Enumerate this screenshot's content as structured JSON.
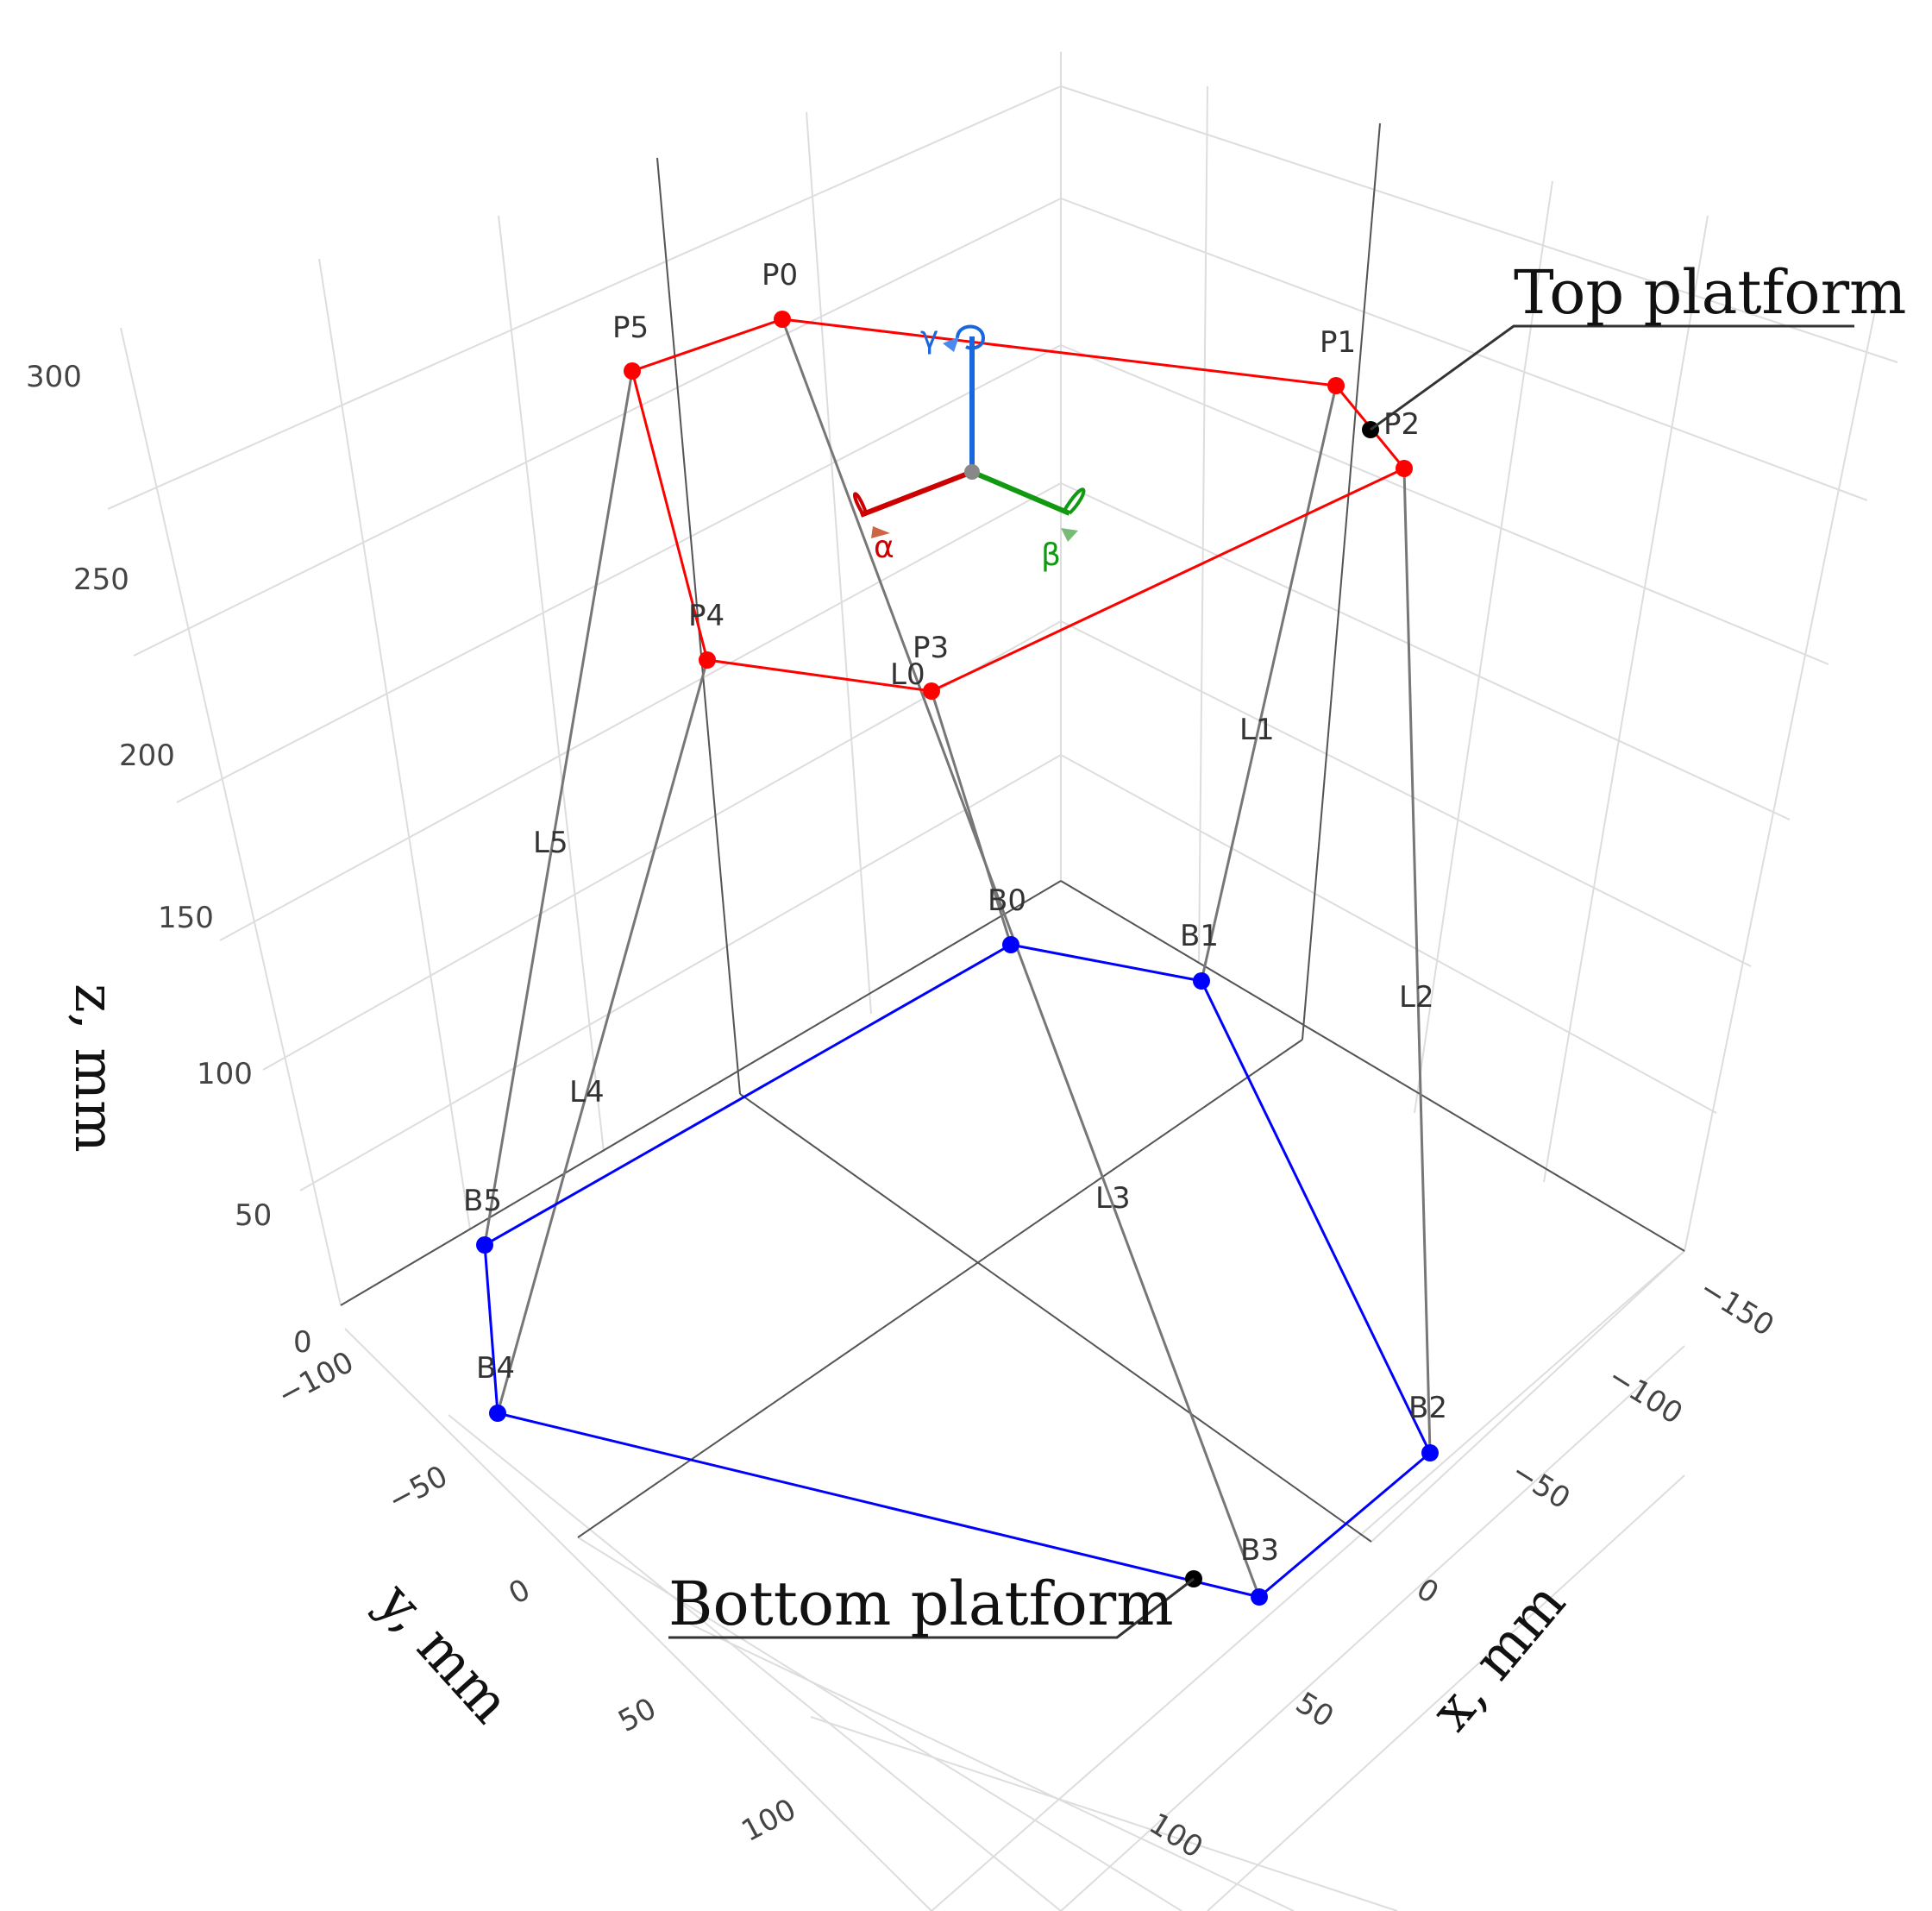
{
  "axes": {
    "z_title": "z, mm",
    "y_title": "y, mm",
    "x_title": "x, mm",
    "z_ticks": [
      "0",
      "50",
      "100",
      "150",
      "200",
      "250",
      "300"
    ],
    "y_ticks": [
      "−100",
      "−50",
      "0",
      "50",
      "100"
    ],
    "x_ticks": [
      "−150",
      "−100",
      "−50",
      "0",
      "50",
      "100"
    ]
  },
  "top_platform": {
    "color": "#ff0000",
    "points": [
      "P0",
      "P1",
      "P2",
      "P3",
      "P4",
      "P5"
    ]
  },
  "bottom_platform": {
    "color": "#0000ff",
    "points": [
      "B0",
      "B1",
      "B2",
      "B3",
      "B4",
      "B5"
    ]
  },
  "legs": {
    "color": "#777777",
    "labels": [
      "L0",
      "L1",
      "L2",
      "L3",
      "L4",
      "L5"
    ]
  },
  "callouts": {
    "top": "Top platform",
    "bottom": "Bottom platform"
  },
  "frame": {
    "alpha": "α",
    "beta": "β",
    "gamma": "γ",
    "alpha_color": "#cc0000",
    "beta_color": "#119911",
    "gamma_color": "#1a66dd"
  }
}
